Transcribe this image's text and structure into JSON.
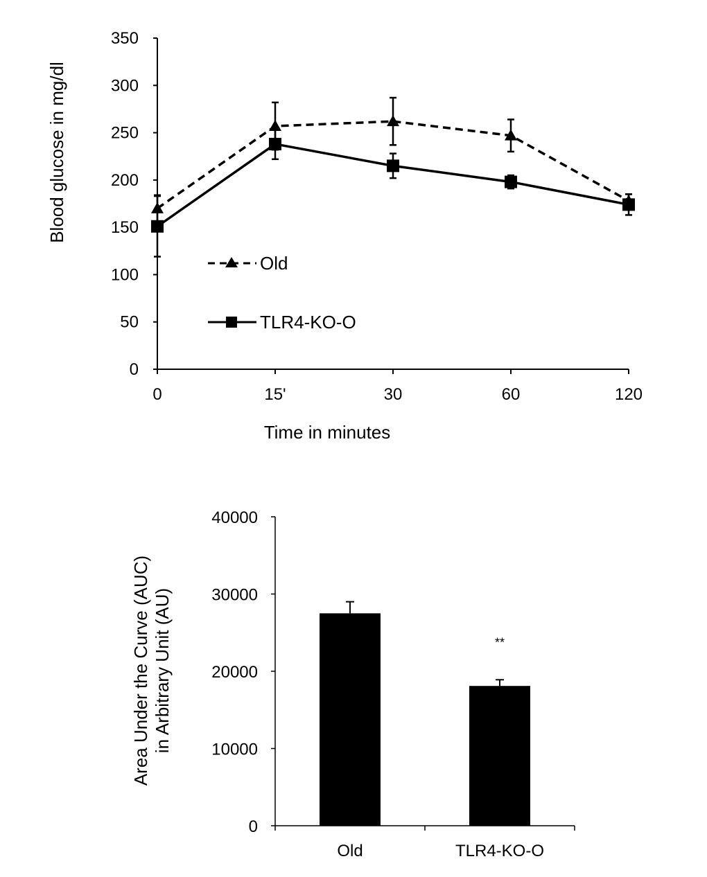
{
  "chart_data": [
    {
      "type": "line",
      "title": "",
      "xlabel": "Time in minutes",
      "ylabel": "Blood glucose in mg/dl",
      "categories": [
        "0",
        "15'",
        "30",
        "60",
        "120"
      ],
      "ylim": [
        0,
        350
      ],
      "yticks": [
        0,
        50,
        100,
        150,
        200,
        250,
        300,
        350
      ],
      "grid": false,
      "legend_position": "left",
      "series": [
        {
          "name": "Old",
          "style": "dashed",
          "marker": "triangle",
          "values": [
            170,
            257,
            262,
            247,
            178
          ],
          "errors": [
            14,
            25,
            25,
            17,
            7
          ]
        },
        {
          "name": "TLR4-KO-O",
          "style": "solid",
          "marker": "square",
          "values": [
            151,
            238,
            215,
            198,
            174
          ],
          "errors": [
            32,
            16,
            13,
            7,
            11
          ]
        }
      ]
    },
    {
      "type": "bar",
      "title": "",
      "xlabel": "",
      "ylabel_lines": [
        "Area Under the Curve (AUC)",
        "in Arbitrary Unit (AU)"
      ],
      "categories": [
        "Old",
        "TLR4-KO-O"
      ],
      "values": [
        27500,
        18100
      ],
      "errors": [
        1500,
        800
      ],
      "ylim": [
        0,
        40000
      ],
      "yticks": [
        0,
        10000,
        20000,
        30000,
        40000
      ],
      "annotations": [
        {
          "category": "TLR4-KO-O",
          "text": "**"
        }
      ]
    }
  ]
}
